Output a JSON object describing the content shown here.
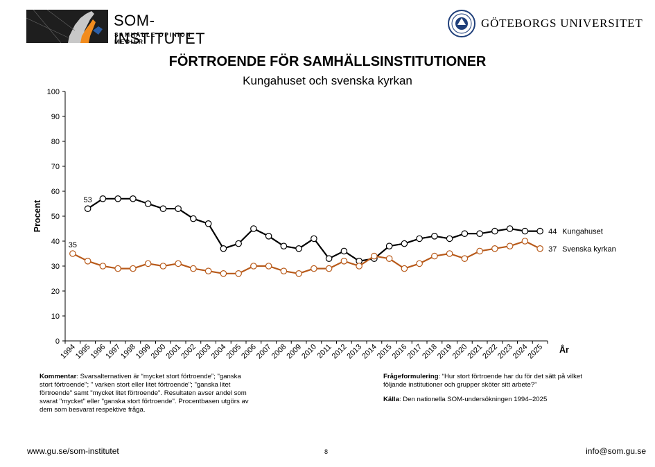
{
  "header": {
    "som_logo": {
      "title": "SOM-INSTITUTET",
      "subtitle": "SAMHÄLLE OPINION MEDIER"
    },
    "gu_logo": {
      "text": "GÖTEBORGS UNIVERSITET"
    }
  },
  "chart_data": {
    "type": "line",
    "title": "FÖRTROENDE FÖR SAMHÄLLSINSTITUTIONER",
    "subtitle": "Kungahuset och svenska kyrkan",
    "xlabel": "År",
    "ylabel": "Procent",
    "ylim": [
      0,
      100
    ],
    "yticks": [
      "0",
      "10",
      "20",
      "30",
      "40",
      "50",
      "60",
      "70",
      "80",
      "90",
      "100"
    ],
    "categories": [
      "1994",
      "1995",
      "1996",
      "1997",
      "1998",
      "1999",
      "2000",
      "2001",
      "2002",
      "2003",
      "2004",
      "2005",
      "2006",
      "2007",
      "2008",
      "2009",
      "2010",
      "2011",
      "2012",
      "2013",
      "2014",
      "2015",
      "2016",
      "2017",
      "2018",
      "2019",
      "2020",
      "2021",
      "2022",
      "2023",
      "2024",
      "2025"
    ],
    "series": [
      {
        "name": "Kungahuset",
        "color": "#000000",
        "values": [
          null,
          53,
          57,
          57,
          57,
          55,
          53,
          53,
          49,
          47,
          37,
          39,
          45,
          42,
          38,
          37,
          41,
          33,
          36,
          32,
          33,
          38,
          39,
          41,
          42,
          41,
          43,
          43,
          44,
          45,
          44,
          44
        ],
        "start_label": "53",
        "end_label": "44"
      },
      {
        "name": "Svenska kyrkan",
        "color": "#b85a1a",
        "values": [
          35,
          32,
          30,
          29,
          29,
          31,
          30,
          31,
          29,
          28,
          27,
          27,
          30,
          30,
          28,
          27,
          29,
          29,
          32,
          30,
          34,
          33,
          29,
          31,
          34,
          35,
          33,
          36,
          37,
          38,
          40,
          37
        ],
        "start_label": "35",
        "end_label": "37"
      }
    ]
  },
  "notes": {
    "comment_label": "Kommentar",
    "comment_lines": [
      ": Svarsalternativen är “mycket stort förtroende”; \"ganska",
      "stort förtroende\"; \" varken stort eller litet förtroende\"; \"ganska litet",
      "förtroende\" samt \"mycket litet förtroende\". Resultaten avser andel som",
      "svarat \"mycket\" eller \"ganska stort förtroende\". Procentbasen utgörs av",
      "dem som besvarat respektive fråga."
    ],
    "question_label": "Frågeformulering",
    "question_lines": [
      ": “Hur stort förtroende har du för det sätt på vilket",
      "följande institutioner och grupper sköter sitt arbete?”"
    ],
    "source_label": "Källa",
    "source_text": ": Den nationella SOM-undersökningen 1994–2025"
  },
  "footer": {
    "left": "www.gu.se/som-institutet",
    "page": "8",
    "right": "info@som.gu.se"
  }
}
